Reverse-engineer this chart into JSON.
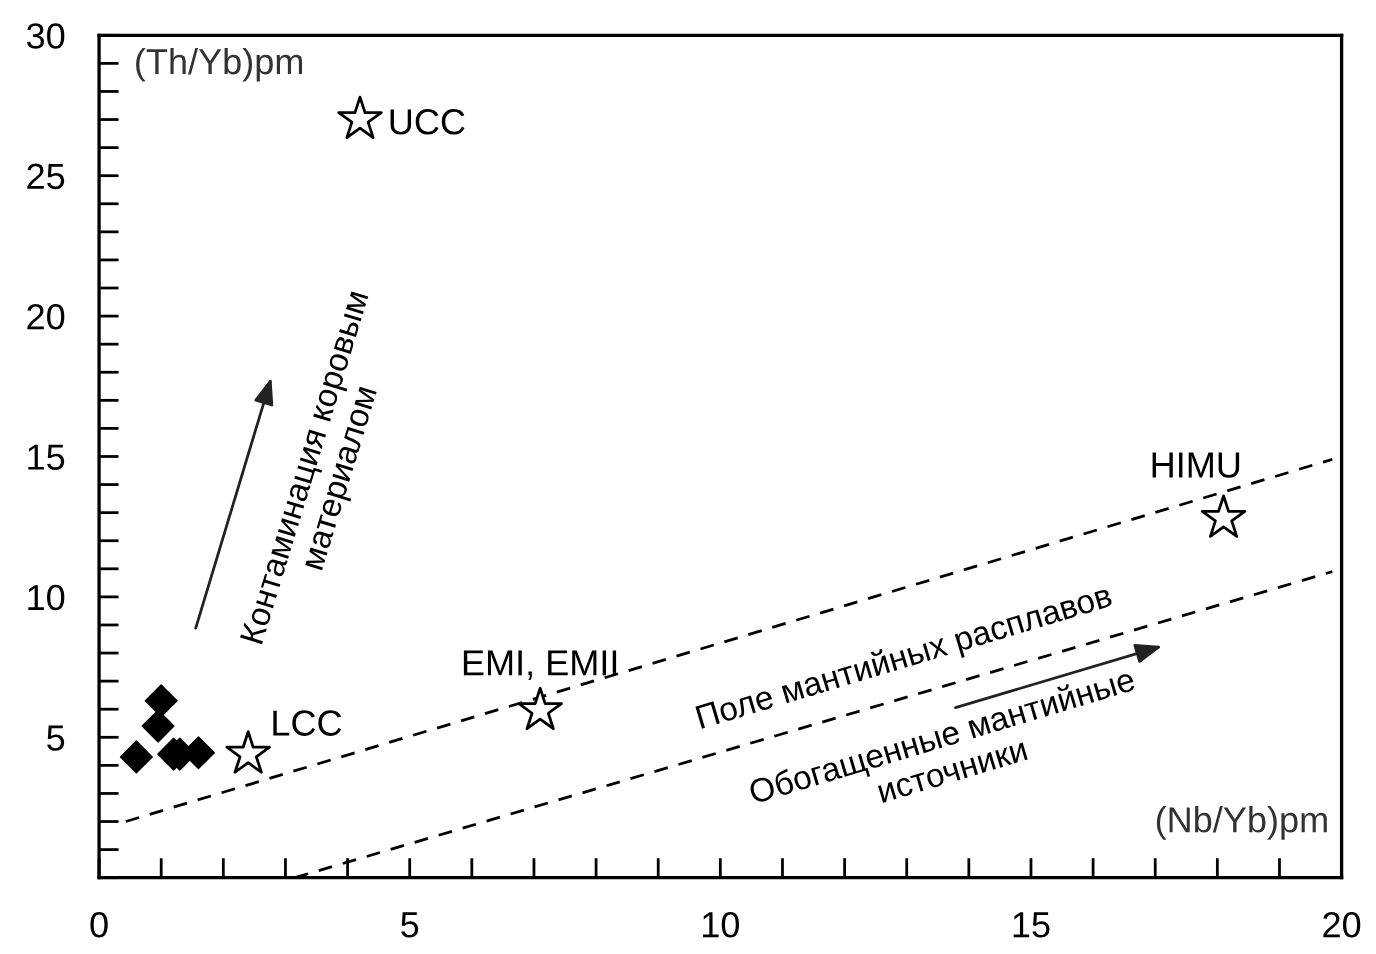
{
  "chart_data": {
    "type": "scatter",
    "xlabel": "(Nb/Yb)pm",
    "ylabel": "(Th/Yb)pm",
    "xlim": [
      0,
      20
    ],
    "ylim": [
      0,
      30
    ],
    "xticks": [
      0,
      {
        "value": 1,
        "label": null
      },
      {
        "value": 2,
        "label": null
      },
      {
        "value": 3,
        "label": null
      },
      {
        "value": 4,
        "label": null
      },
      5,
      {
        "value": 6,
        "label": null
      },
      {
        "value": 7,
        "label": null
      },
      {
        "value": 8,
        "label": null
      },
      {
        "value": 9,
        "label": null
      },
      10,
      {
        "value": 11,
        "label": null
      },
      {
        "value": 12,
        "label": null
      },
      {
        "value": 13,
        "label": null
      },
      {
        "value": 14,
        "label": null
      },
      15,
      {
        "value": 16,
        "label": null
      },
      {
        "value": 17,
        "label": null
      },
      {
        "value": 18,
        "label": null
      },
      {
        "value": 19,
        "label": null
      },
      20
    ],
    "yticks": [
      {
        "value": 0,
        "label": null
      },
      {
        "value": 1,
        "label": null
      },
      {
        "value": 2,
        "label": null
      },
      {
        "value": 3,
        "label": null
      },
      {
        "value": 4,
        "label": null
      },
      5,
      {
        "value": 6,
        "label": null
      },
      {
        "value": 7,
        "label": null
      },
      {
        "value": 8,
        "label": null
      },
      {
        "value": 9,
        "label": null
      },
      10,
      {
        "value": 11,
        "label": null
      },
      {
        "value": 12,
        "label": null
      },
      {
        "value": 13,
        "label": null
      },
      {
        "value": 14,
        "label": null
      },
      15,
      {
        "value": 16,
        "label": null
      },
      {
        "value": 17,
        "label": null
      },
      {
        "value": 18,
        "label": null
      },
      {
        "value": 19,
        "label": null
      },
      20,
      {
        "value": 21,
        "label": null
      },
      {
        "value": 22,
        "label": null
      },
      {
        "value": 23,
        "label": null
      },
      {
        "value": 24,
        "label": null
      },
      25,
      {
        "value": 26,
        "label": null
      },
      {
        "value": 27,
        "label": null
      },
      {
        "value": 28,
        "label": null
      },
      {
        "value": 29,
        "label": null
      },
      30
    ],
    "grid": false,
    "legend": false,
    "series": [
      {
        "type": "line",
        "color": "#000000",
        "line_style": "dashed",
        "marker": "none",
        "x": [
          0.43,
          19.85
        ],
        "values": [
          2.0,
          14.9
        ]
      },
      {
        "type": "line",
        "color": "#000000",
        "line_style": "dashed",
        "marker": "none",
        "x": [
          3.15,
          19.85
        ],
        "values": [
          0.0,
          10.9
        ]
      },
      {
        "color": "#000000",
        "marker": "diamond",
        "x": [
          0.6,
          1.0,
          0.95,
          1.2,
          1.3,
          1.6
        ],
        "values": [
          4.3,
          6.3,
          5.4,
          4.4,
          4.4,
          4.45
        ]
      },
      {
        "color": "#ffffff",
        "marker": "star",
        "x": [
          4.2,
          2.4,
          7.1,
          18.1
        ],
        "values": [
          27.0,
          4.4,
          5.95,
          12.8
        ]
      }
    ],
    "annotations": [
      {
        "text": "UCC",
        "x": 4.2,
        "y": 27.0
      },
      {
        "text": "LCC",
        "x": 2.4,
        "y": 4.4
      },
      {
        "text": "EMI, EMII",
        "x": 7.1,
        "y": 5.95
      },
      {
        "text": "HIMU",
        "x": 18.1,
        "y": 12.8
      },
      "Контаминация коровым\nматериалом",
      "Поле мантийных расплавов",
      "Обогащенные мантийные\nисточники"
    ]
  }
}
